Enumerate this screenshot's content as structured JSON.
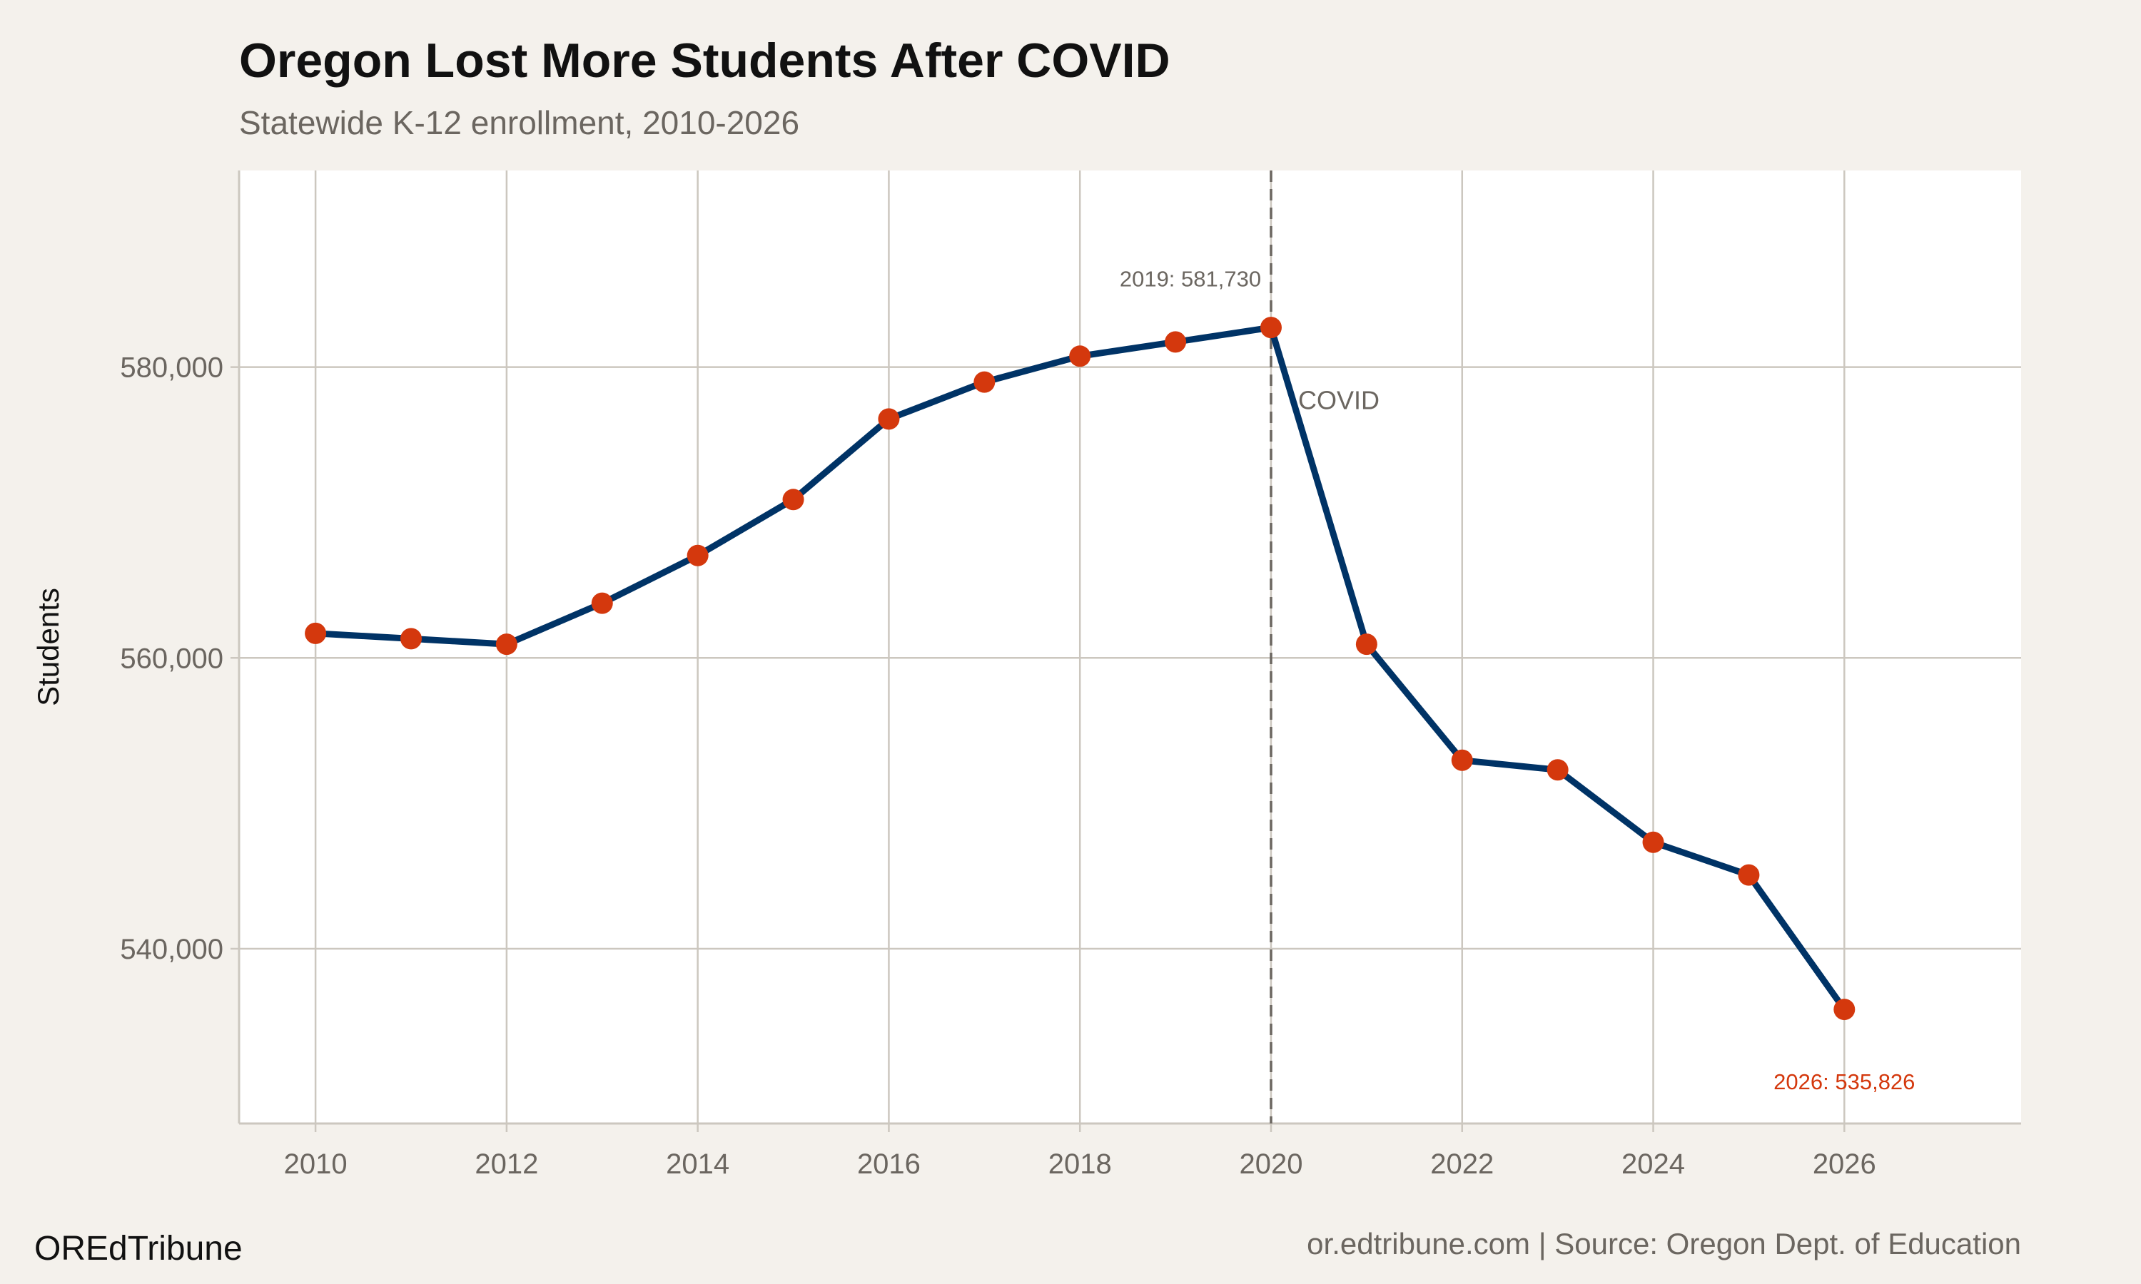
{
  "chart_data": {
    "type": "line",
    "title": "Oregon Lost More Students After COVID",
    "subtitle": "Statewide K-12 enrollment, 2010-2026",
    "xlabel": "",
    "ylabel": "Students",
    "x": [
      2010,
      2011,
      2012,
      2013,
      2014,
      2015,
      2016,
      2017,
      2018,
      2019,
      2020,
      2021,
      2022,
      2023,
      2024,
      2025,
      2026
    ],
    "values": [
      561690,
      561320,
      560940,
      563760,
      567040,
      570890,
      576430,
      578970,
      580750,
      581730,
      582720,
      560940,
      552960,
      552300,
      547320,
      545070,
      535826
    ],
    "xlim": [
      2009.2,
      2027.85
    ],
    "ylim": [
      527980,
      593520
    ],
    "xticks": [
      2010,
      2012,
      2014,
      2016,
      2018,
      2020,
      2022,
      2024,
      2026
    ],
    "xtick_labels": [
      "2010",
      "2012",
      "2014",
      "2016",
      "2018",
      "2020",
      "2022",
      "2024",
      "2026"
    ],
    "yticks": [
      540000,
      560000,
      580000
    ],
    "ytick_labels": [
      "540,000",
      "560,000",
      "580,000"
    ],
    "grid": true,
    "line_color": "#003366",
    "marker_color": "#d4380d",
    "vline": {
      "x": 2020,
      "label": "COVID",
      "color": "#6b6660"
    },
    "annotations": [
      {
        "text": "2019: 581,730",
        "x": 2019,
        "color": "#6b6660"
      },
      {
        "text": "2026: 535,826",
        "x": 2026,
        "color": "#d4380d"
      }
    ]
  },
  "footer": {
    "brand": "OREdTribune",
    "source": "or.edtribune.com | Source: Oregon Dept. of Education"
  }
}
